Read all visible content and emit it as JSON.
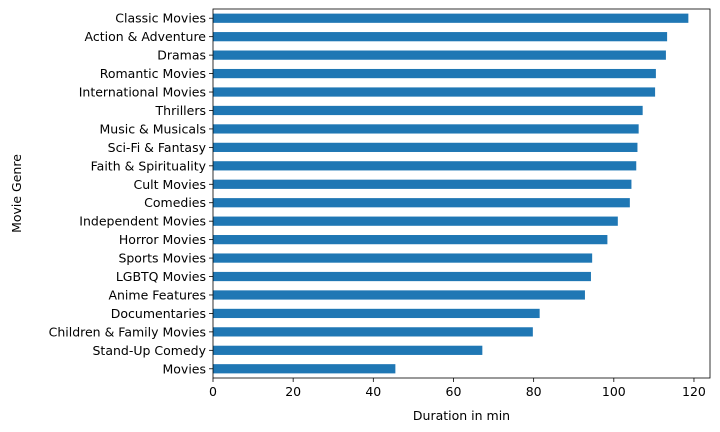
{
  "chart_data": {
    "type": "bar",
    "orientation": "horizontal",
    "title": "",
    "xlabel": "Duration in min",
    "ylabel": "Movie Genre",
    "xlim": [
      0,
      124
    ],
    "xticks": [
      0,
      20,
      40,
      60,
      80,
      100,
      120
    ],
    "grid": false,
    "bar_color": "#1f77b4",
    "categories": [
      "Classic Movies",
      "Action & Adventure",
      "Dramas",
      "Romantic Movies",
      "International Movies",
      "Thrillers",
      "Music & Musicals",
      "Sci-Fi & Fantasy",
      "Faith & Spirituality",
      "Cult Movies",
      "Comedies",
      "Independent Movies",
      "Horror Movies",
      "Sports Movies",
      "LGBTQ Movies",
      "Anime Features",
      "Documentaries",
      "Children & Family Movies",
      "Stand-Up Comedy",
      "Movies"
    ],
    "values": [
      118.6,
      113.3,
      113.0,
      110.5,
      110.3,
      107.2,
      106.2,
      105.9,
      105.6,
      104.4,
      104.0,
      101.0,
      98.4,
      94.6,
      94.3,
      92.8,
      81.5,
      79.8,
      67.2,
      45.5
    ]
  }
}
